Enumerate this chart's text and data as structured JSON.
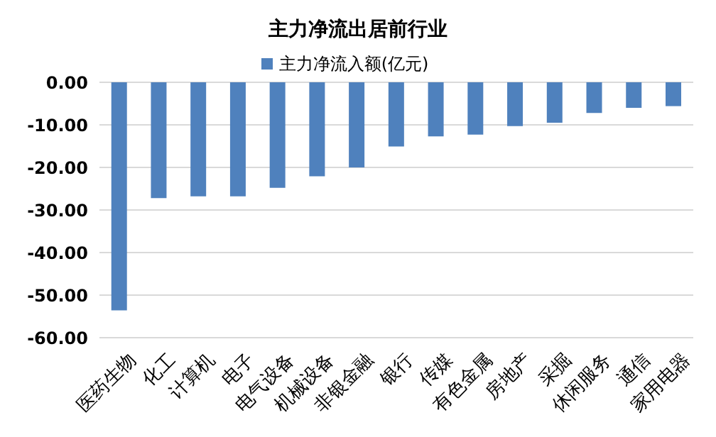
{
  "chart_data": {
    "type": "bar",
    "title": "主力净流出居前行业",
    "categories": [
      "医药生物",
      "化工",
      "计算机",
      "电子",
      "电气设备",
      "机械设备",
      "非银金融",
      "银行",
      "传媒",
      "有色金属",
      "房地产",
      "采掘",
      "休闲服务",
      "通信",
      "家用电器"
    ],
    "series": [
      {
        "name": "主力净流入额(亿元)",
        "color": "#4f81bd",
        "values": [
          -53.6,
          -27.2,
          -26.8,
          -26.8,
          -24.8,
          -22.1,
          -20.0,
          -15.1,
          -12.7,
          -12.3,
          -10.3,
          -9.5,
          -7.2,
          -6.0,
          -5.6
        ]
      }
    ],
    "ylim": [
      -60,
      0
    ],
    "yticks": [
      {
        "value": 0,
        "label": "0.00"
      },
      {
        "value": -10,
        "label": "-10.00"
      },
      {
        "value": -20,
        "label": "-20.00"
      },
      {
        "value": -30,
        "label": "-30.00"
      },
      {
        "value": -40,
        "label": "-40.00"
      },
      {
        "value": -50,
        "label": "-50.00"
      },
      {
        "value": -60,
        "label": "-60.00"
      }
    ],
    "grid": "y",
    "legend": "top"
  }
}
